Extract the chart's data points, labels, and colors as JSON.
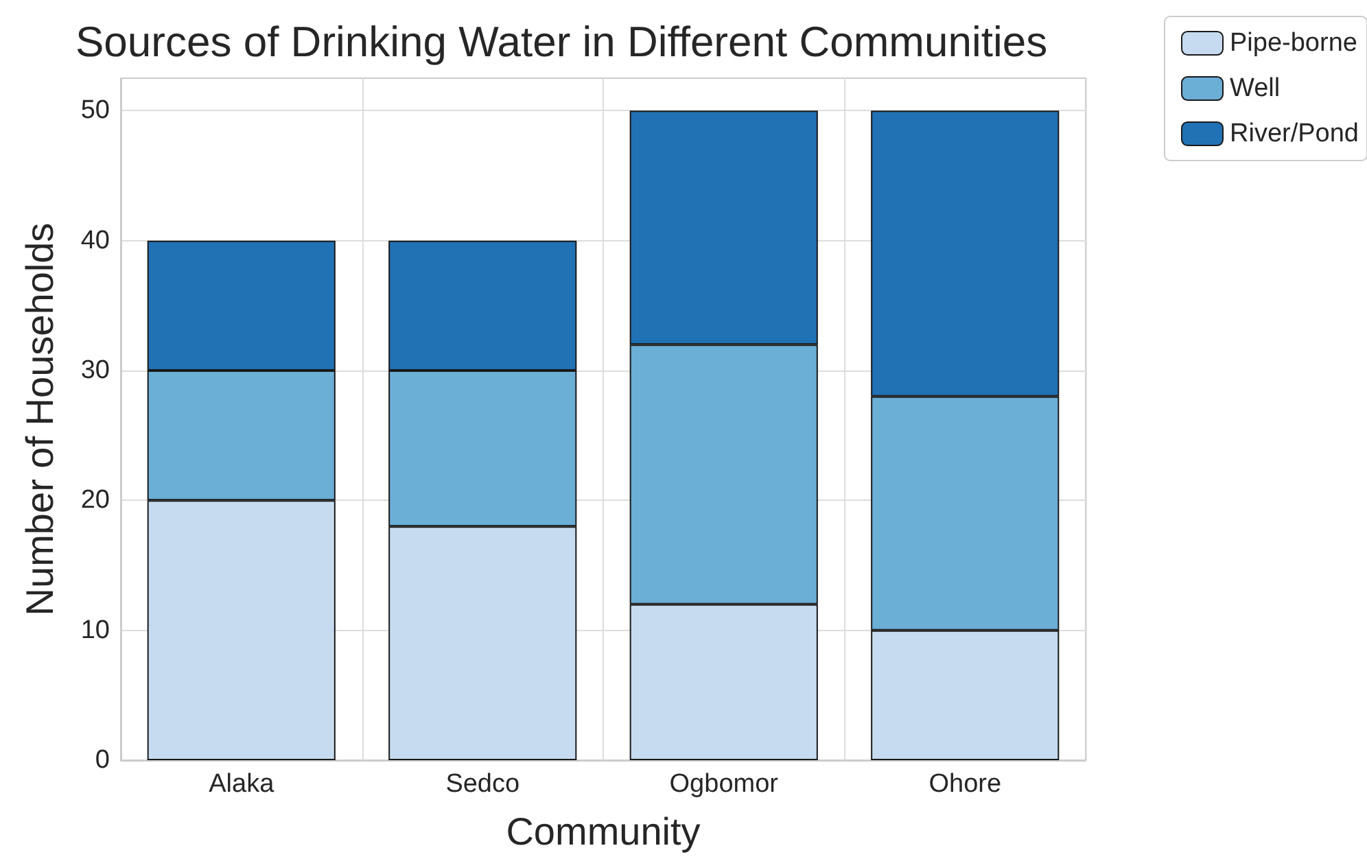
{
  "chart_data": {
    "type": "bar",
    "title": "Sources of Drinking Water in Different Communities",
    "xlabel": "Community",
    "ylabel": "Number of Households",
    "categories": [
      "Alaka",
      "Sedco",
      "Ogbomor",
      "Ohore"
    ],
    "series": [
      {
        "name": "Pipe-borne",
        "color": "#c6dbef",
        "values": [
          20,
          18,
          12,
          10
        ]
      },
      {
        "name": "Well",
        "color": "#6baed6",
        "values": [
          10,
          12,
          20,
          18
        ]
      },
      {
        "name": "River/Pond",
        "color": "#2171b5",
        "values": [
          10,
          10,
          18,
          22
        ]
      }
    ],
    "stacked": true,
    "ylim": [
      0,
      52.5
    ],
    "yticks": [
      0,
      10,
      20,
      30,
      40,
      50
    ],
    "grid": true,
    "legend": "top right"
  }
}
